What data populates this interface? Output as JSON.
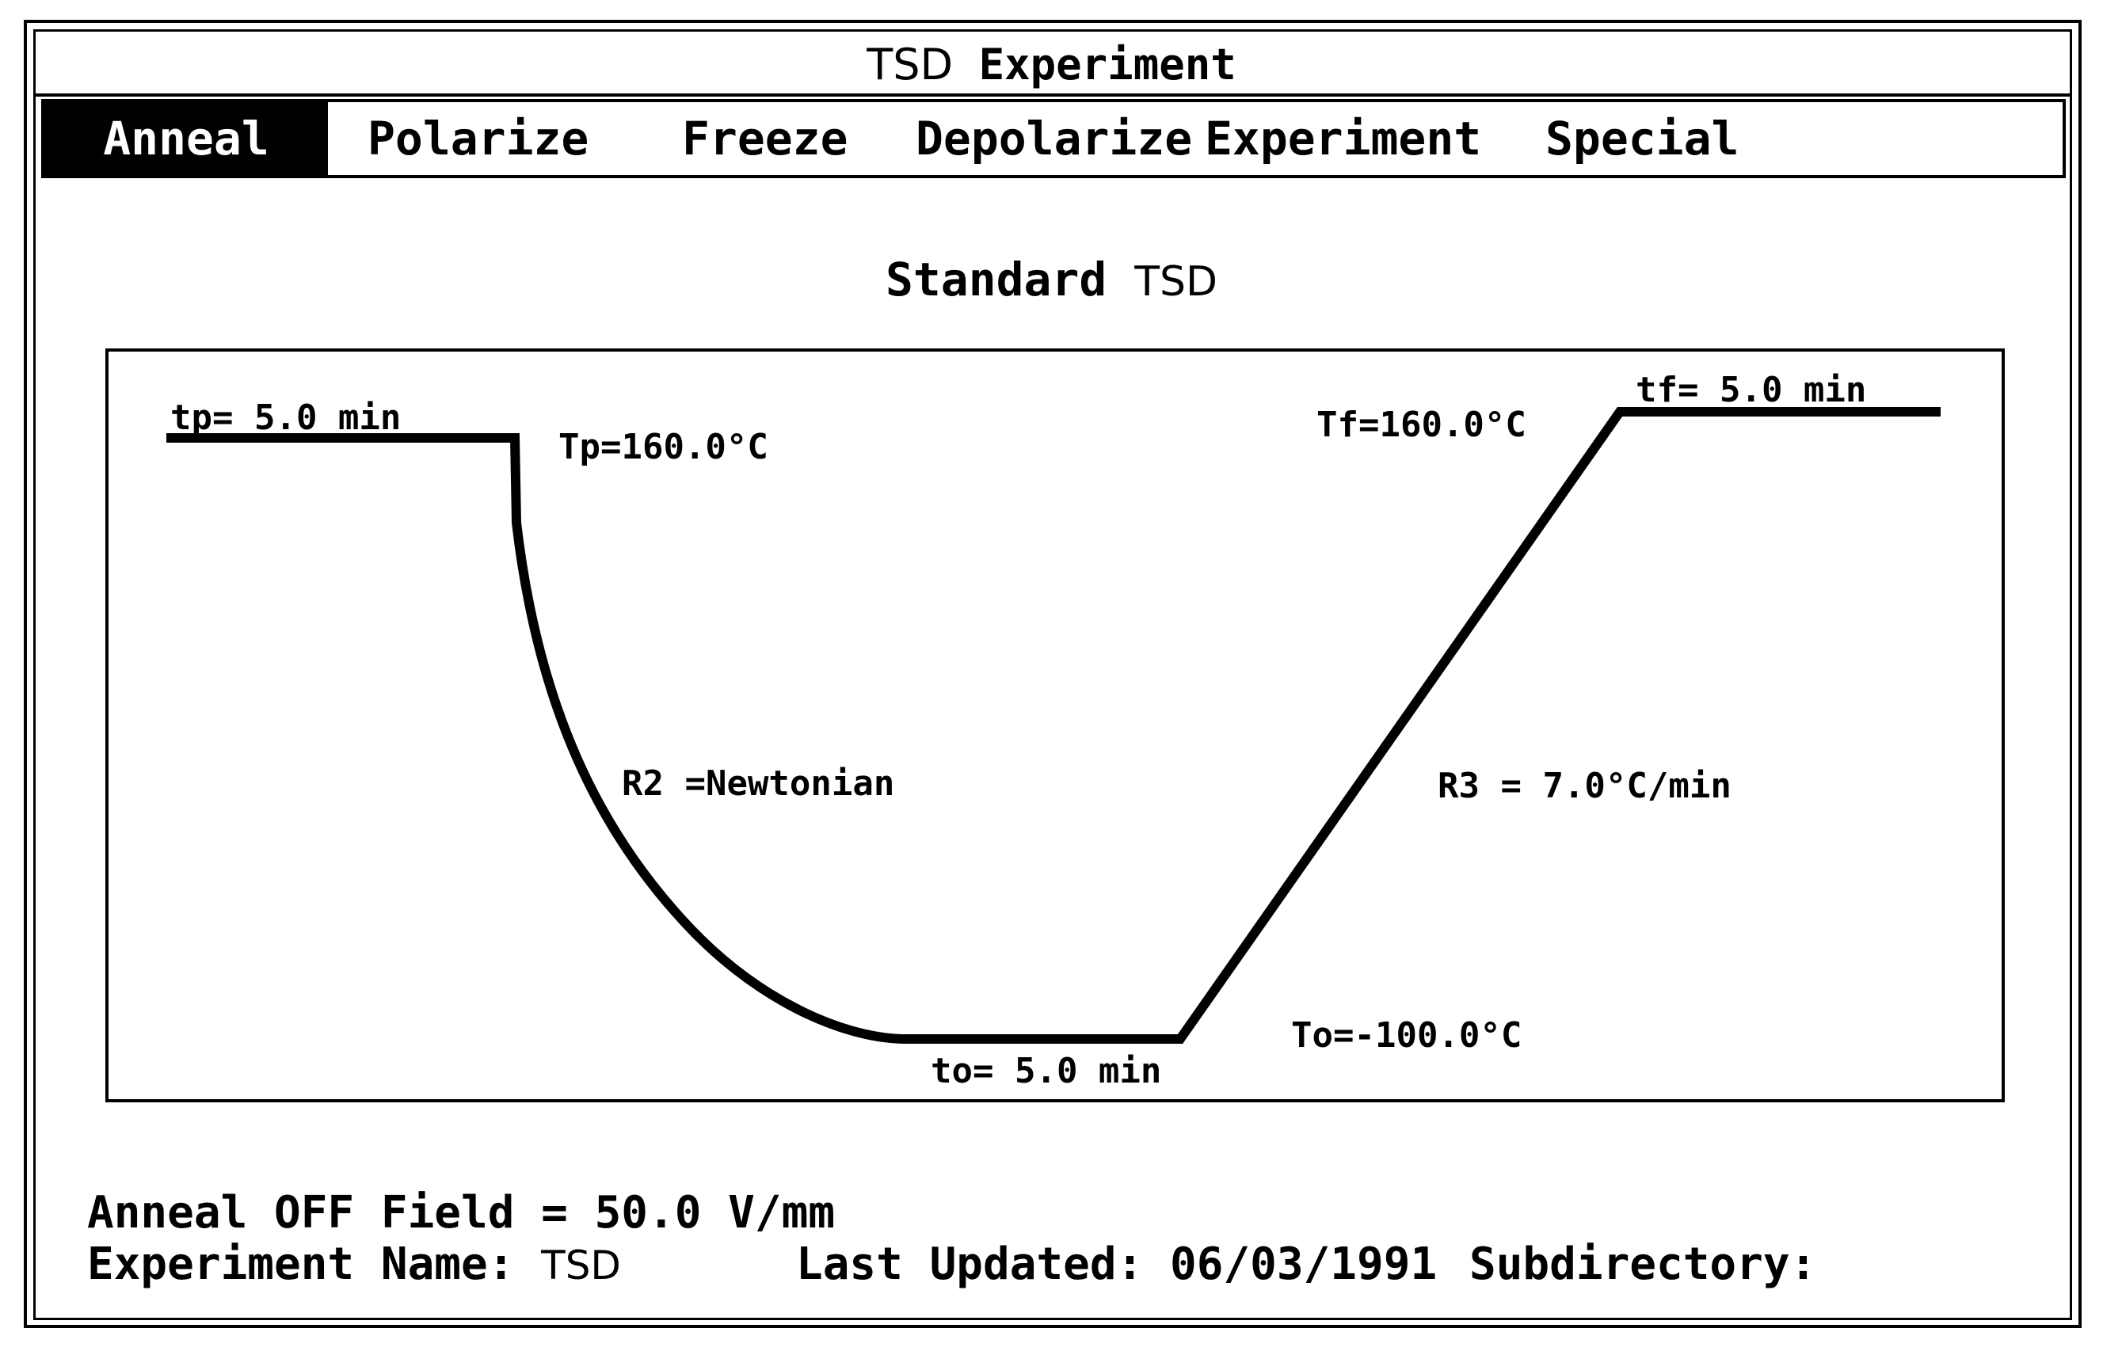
{
  "window": {
    "title_prefix": "TSD",
    "title_main": "Experiment"
  },
  "menu": {
    "items": [
      {
        "label": "Anneal",
        "active": true
      },
      {
        "label": "Polarize",
        "active": false
      },
      {
        "label": "Freeze",
        "active": false
      },
      {
        "label": "Depolarize",
        "active": false
      },
      {
        "label": "Experiment",
        "active": false
      },
      {
        "label": "Special",
        "active": false
      }
    ]
  },
  "subtitle": {
    "main": "Standard",
    "suffix": "TSD"
  },
  "diagram": {
    "tp_label": "tp=  5.0 min",
    "Tp_label": "Tp=160.0°C",
    "R2_label": "R2 =Newtonian",
    "to_label": "to=  5.0 min",
    "To_label": "To=-100.0°C",
    "R3_label": "R3 = 7.0°C/min",
    "Tf_label": "Tf=160.0°C",
    "tf_label": "tf=  5.0 min"
  },
  "footer": {
    "field_label": "Anneal OFF Field =",
    "field_value": "50.0 V/mm",
    "name_label": "Experiment Name:",
    "name_value": "TSD",
    "updated_label": "Last Updated:",
    "updated_value": "06/03/1991",
    "subdir_label": "Subdirectory:",
    "subdir_value": ""
  }
}
